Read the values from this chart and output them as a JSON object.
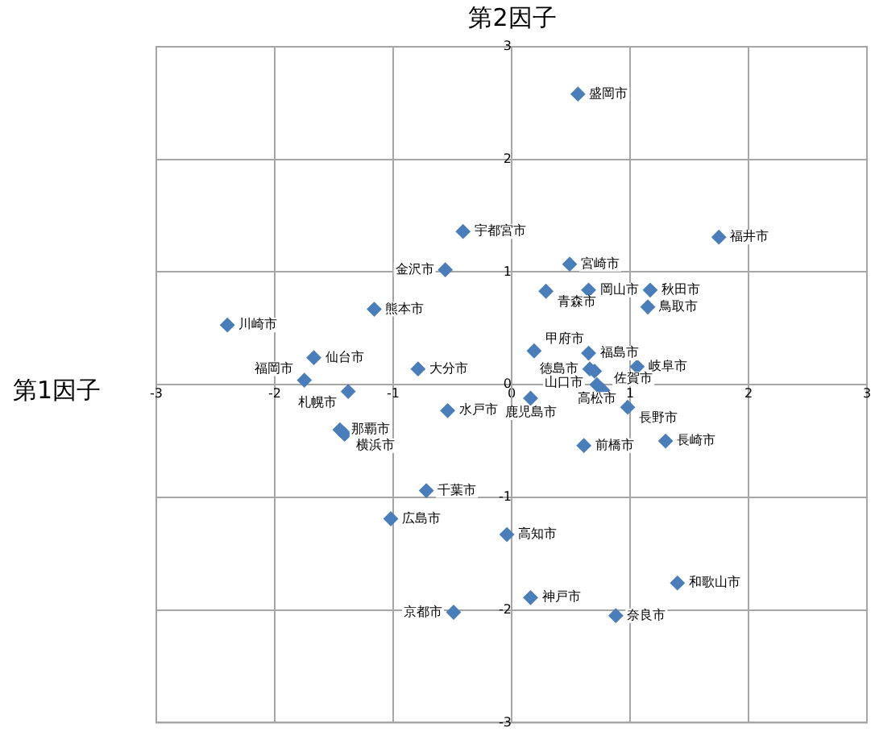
{
  "chart_data": {
    "type": "scatter",
    "xlabel": "第1因子",
    "ylabel": "第2因子",
    "xlim": [
      -3,
      3
    ],
    "ylim": [
      -3,
      3
    ],
    "xticks": [
      -3,
      -2,
      -1,
      0,
      1,
      2,
      3
    ],
    "yticks": [
      -3,
      -2,
      -1,
      0,
      1,
      2,
      3
    ],
    "grid": true,
    "legend": false,
    "marker": "diamond",
    "series": [
      {
        "name": "盛岡市",
        "color": "#4a7ebb",
        "x": [
          0.56
        ],
        "values": [
          2.58
        ]
      },
      {
        "name": "宇都宮市",
        "color": "#4a7ebb",
        "x": [
          -0.41
        ],
        "values": [
          1.36
        ]
      },
      {
        "name": "福井市",
        "color": "#4a7ebb",
        "x": [
          1.75
        ],
        "values": [
          1.31
        ]
      },
      {
        "name": "金沢市",
        "color": "#4a7ebb",
        "x": [
          -0.56
        ],
        "values": [
          1.02
        ]
      },
      {
        "name": "宮崎市",
        "color": "#4a7ebb",
        "x": [
          0.49
        ],
        "values": [
          1.07
        ]
      },
      {
        "name": "青森市",
        "color": "#4a7ebb",
        "x": [
          0.29
        ],
        "values": [
          0.83
        ]
      },
      {
        "name": "岡山市",
        "color": "#4a7ebb",
        "x": [
          0.65
        ],
        "values": [
          0.84
        ]
      },
      {
        "name": "秋田市",
        "color": "#4a7ebb",
        "x": [
          1.17
        ],
        "values": [
          0.84
        ]
      },
      {
        "name": "鳥取市",
        "color": "#4a7ebb",
        "x": [
          1.15
        ],
        "values": [
          0.69
        ]
      },
      {
        "name": "熊本市",
        "color": "#4a7ebb",
        "x": [
          -1.16
        ],
        "values": [
          0.67
        ]
      },
      {
        "name": "川崎市",
        "color": "#4a7ebb",
        "x": [
          -2.4
        ],
        "values": [
          0.53
        ]
      },
      {
        "name": "甲府市",
        "color": "#4a7ebb",
        "x": [
          0.19
        ],
        "values": [
          0.3
        ]
      },
      {
        "name": "福島市",
        "color": "#4a7ebb",
        "x": [
          0.65
        ],
        "values": [
          0.28
        ]
      },
      {
        "name": "徳島市",
        "color": "#4a7ebb",
        "x": [
          0.66
        ],
        "values": [
          0.14
        ]
      },
      {
        "name": "山口市",
        "color": "#4a7ebb",
        "x": [
          0.7
        ],
        "values": [
          0.12
        ]
      },
      {
        "name": "岐阜市",
        "color": "#4a7ebb",
        "x": [
          1.06
        ],
        "values": [
          0.16
        ]
      },
      {
        "name": "高松市",
        "color": "#4a7ebb",
        "x": [
          0.72
        ],
        "values": [
          0.0
        ]
      },
      {
        "name": "佐賀市",
        "color": "#4a7ebb",
        "x": [
          0.77
        ],
        "values": [
          -0.05
        ]
      },
      {
        "name": "仙台市",
        "color": "#4a7ebb",
        "x": [
          -1.67
        ],
        "values": [
          0.24
        ]
      },
      {
        "name": "大分市",
        "color": "#4a7ebb",
        "x": [
          -0.79
        ],
        "values": [
          0.14
        ]
      },
      {
        "name": "福岡市",
        "color": "#4a7ebb",
        "x": [
          -1.75
        ],
        "values": [
          0.04
        ]
      },
      {
        "name": "札幌市",
        "color": "#4a7ebb",
        "x": [
          -1.38
        ],
        "values": [
          -0.06
        ]
      },
      {
        "name": "鹿児島市",
        "color": "#4a7ebb",
        "x": [
          0.16
        ],
        "values": [
          -0.12
        ]
      },
      {
        "name": "長野市",
        "color": "#4a7ebb",
        "x": [
          0.98
        ],
        "values": [
          -0.2
        ]
      },
      {
        "name": "水戸市",
        "color": "#4a7ebb",
        "x": [
          -0.54
        ],
        "values": [
          -0.23
        ]
      },
      {
        "name": "那覇市",
        "color": "#4a7ebb",
        "x": [
          -1.45
        ],
        "values": [
          -0.4
        ]
      },
      {
        "name": "横浜市",
        "color": "#4a7ebb",
        "x": [
          -1.41
        ],
        "values": [
          -0.44
        ]
      },
      {
        "name": "前橋市",
        "color": "#4a7ebb",
        "x": [
          0.61
        ],
        "values": [
          -0.54
        ]
      },
      {
        "name": "長崎市",
        "color": "#4a7ebb",
        "x": [
          1.3
        ],
        "values": [
          -0.5
        ]
      },
      {
        "name": "千葉市",
        "color": "#4a7ebb",
        "x": [
          -0.72
        ],
        "values": [
          -0.94
        ]
      },
      {
        "name": "広島市",
        "color": "#4a7ebb",
        "x": [
          -1.02
        ],
        "values": [
          -1.19
        ]
      },
      {
        "name": "高知市",
        "color": "#4a7ebb",
        "x": [
          -0.04
        ],
        "values": [
          -1.33
        ]
      },
      {
        "name": "和歌山市",
        "color": "#4a7ebb",
        "x": [
          1.4
        ],
        "values": [
          -1.76
        ]
      },
      {
        "name": "神戸市",
        "color": "#4a7ebb",
        "x": [
          0.16
        ],
        "values": [
          -1.89
        ]
      },
      {
        "name": "京都市",
        "color": "#4a7ebb",
        "x": [
          -0.49
        ],
        "values": [
          -2.02
        ]
      },
      {
        "name": "奈良市",
        "color": "#4a7ebb",
        "x": [
          0.88
        ],
        "values": [
          -2.05
        ]
      }
    ]
  }
}
